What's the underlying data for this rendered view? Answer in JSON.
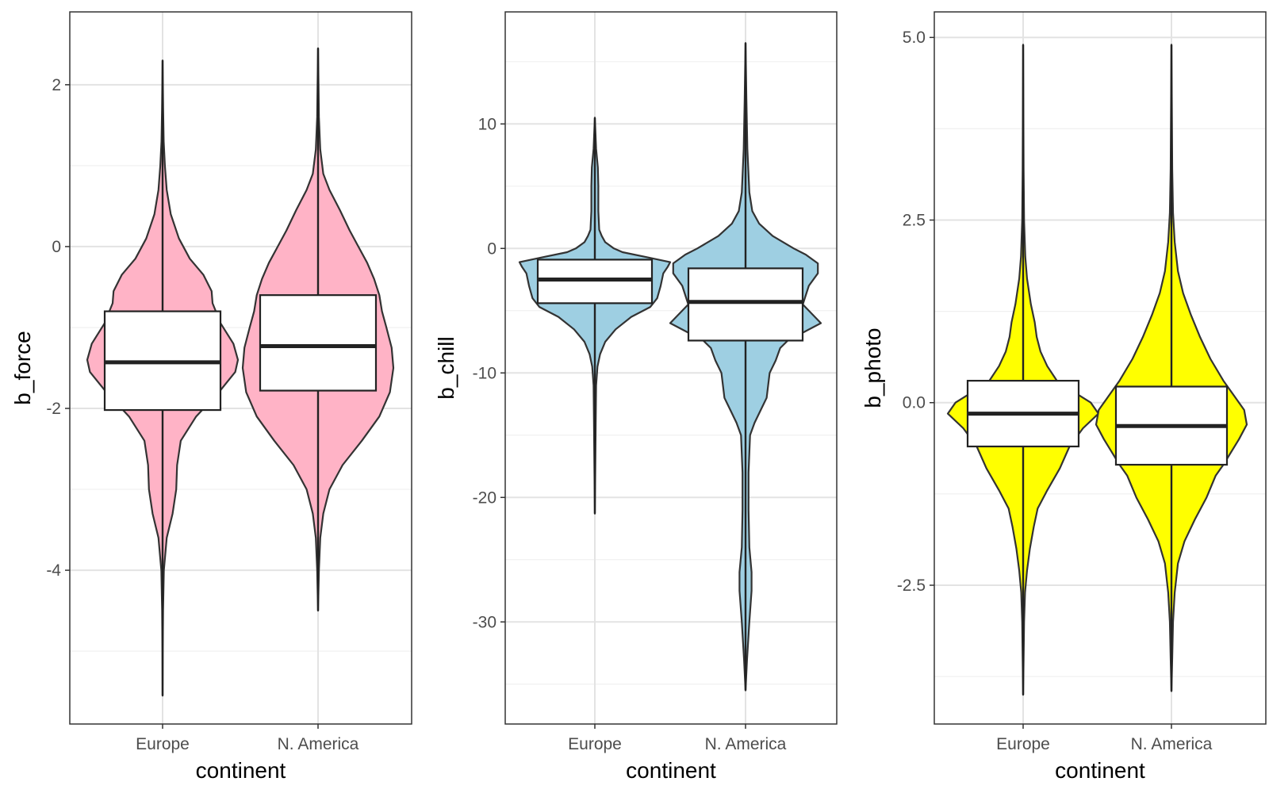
{
  "chart_data": [
    {
      "type": "violin",
      "xlabel": "continent",
      "ylabel": "b_force",
      "categories": [
        "Europe",
        "N. America"
      ],
      "ylim": [
        -5.9,
        2.9
      ],
      "yticks": [
        2,
        0,
        -2,
        -4
      ],
      "ytick_labels": [
        "2",
        "0",
        "-2",
        "-4"
      ],
      "fill": "#ffb3c6",
      "grid": true,
      "violins": [
        {
          "category": "Europe",
          "min": -5.55,
          "max": 2.3,
          "box": {
            "q1": -2.02,
            "median": -1.43,
            "q3": -0.8
          },
          "profile": [
            [
              -5.55,
              0.0
            ],
            [
              -5.0,
              0.2
            ],
            [
              -4.5,
              0.5
            ],
            [
              -4.0,
              1.4
            ],
            [
              -3.6,
              4.5
            ],
            [
              -3.3,
              11
            ],
            [
              -3.0,
              15
            ],
            [
              -2.7,
              16
            ],
            [
              -2.4,
              20
            ],
            [
              -2.1,
              37
            ],
            [
              -1.8,
              62
            ],
            [
              -1.55,
              80
            ],
            [
              -1.4,
              83
            ],
            [
              -1.2,
              78
            ],
            [
              -0.95,
              64
            ],
            [
              -0.7,
              55
            ],
            [
              -0.55,
              54
            ],
            [
              -0.35,
              45
            ],
            [
              -0.15,
              30
            ],
            [
              0.1,
              18
            ],
            [
              0.4,
              9
            ],
            [
              0.7,
              4.5
            ],
            [
              1.0,
              2.5
            ],
            [
              1.3,
              1.2
            ],
            [
              1.7,
              0.6
            ],
            [
              2.3,
              0.0
            ]
          ]
        },
        {
          "category": "N. America",
          "min": -4.5,
          "max": 2.45,
          "box": {
            "q1": -1.78,
            "median": -1.23,
            "q3": -0.6
          },
          "profile": [
            [
              -4.5,
              0.0
            ],
            [
              -4.0,
              1.0
            ],
            [
              -3.6,
              2.5
            ],
            [
              -3.3,
              6
            ],
            [
              -3.0,
              13
            ],
            [
              -2.7,
              28
            ],
            [
              -2.4,
              50
            ],
            [
              -2.1,
              70
            ],
            [
              -1.8,
              82
            ],
            [
              -1.5,
              86
            ],
            [
              -1.25,
              84
            ],
            [
              -1.0,
              78
            ],
            [
              -0.8,
              73
            ],
            [
              -0.6,
              70
            ],
            [
              -0.4,
              64
            ],
            [
              -0.2,
              56
            ],
            [
              0.0,
              46
            ],
            [
              0.2,
              36
            ],
            [
              0.45,
              25
            ],
            [
              0.7,
              13
            ],
            [
              0.9,
              6
            ],
            [
              1.2,
              2.5
            ],
            [
              1.6,
              1.0
            ],
            [
              2.0,
              0.5
            ],
            [
              2.45,
              0.0
            ]
          ]
        }
      ]
    },
    {
      "type": "violin",
      "xlabel": "continent",
      "ylabel": "b_chill",
      "categories": [
        "Europe",
        "N. America"
      ],
      "ylim": [
        -38.2,
        19
      ],
      "yticks": [
        10,
        0,
        -10,
        -20,
        -30
      ],
      "ytick_labels": [
        "10",
        "0",
        "-10",
        "-20",
        "-30"
      ],
      "fill": "#9ecfe2",
      "grid": true,
      "violins": [
        {
          "category": "Europe",
          "min": -21.3,
          "max": 10.5,
          "box": {
            "q1": -4.4,
            "median": -2.5,
            "q3": -0.9
          },
          "profile": [
            [
              -21.3,
              0.0
            ],
            [
              -18,
              0.5
            ],
            [
              -14,
              1.0
            ],
            [
              -11,
              1.5
            ],
            [
              -9.5,
              3
            ],
            [
              -8.5,
              6
            ],
            [
              -7.5,
              12
            ],
            [
              -6.5,
              24
            ],
            [
              -5.5,
              42
            ],
            [
              -4.7,
              64
            ],
            [
              -4.0,
              72
            ],
            [
              -3.0,
              76
            ],
            [
              -2.0,
              79
            ],
            [
              -1.5,
              84
            ],
            [
              -1.1,
              87
            ],
            [
              -0.7,
              60
            ],
            [
              -0.3,
              32
            ],
            [
              0.0,
              22
            ],
            [
              0.5,
              12
            ],
            [
              1.0,
              8
            ],
            [
              1.5,
              5
            ],
            [
              3.0,
              4
            ],
            [
              5.0,
              4
            ],
            [
              6.5,
              3.5
            ],
            [
              8.0,
              1.5
            ],
            [
              10.5,
              0.0
            ]
          ]
        },
        {
          "category": "N. America",
          "min": -35.5,
          "max": 16.5,
          "box": {
            "q1": -7.4,
            "median": -4.3,
            "q3": -1.6
          },
          "profile": [
            [
              -35.5,
              0.0
            ],
            [
              -33,
              1.0
            ],
            [
              -30,
              2.5
            ],
            [
              -27.5,
              4
            ],
            [
              -26,
              4
            ],
            [
              -24,
              2.5
            ],
            [
              -21,
              2.0
            ],
            [
              -18,
              2.0
            ],
            [
              -15,
              3
            ],
            [
              -14,
              6
            ],
            [
              -13,
              10
            ],
            [
              -12,
              14
            ],
            [
              -11,
              15
            ],
            [
              -10,
              16
            ],
            [
              -9,
              20
            ],
            [
              -8,
              23
            ],
            [
              -7.4,
              28
            ],
            [
              -6,
              50
            ],
            [
              -4.5,
              38
            ],
            [
              -3,
              42
            ],
            [
              -2,
              48
            ],
            [
              -1.2,
              48
            ],
            [
              -0.5,
              40
            ],
            [
              0.0,
              32
            ],
            [
              1.0,
              18
            ],
            [
              2.0,
              9
            ],
            [
              3.0,
              4.5
            ],
            [
              4.5,
              2.5
            ],
            [
              8.0,
              1.2
            ],
            [
              12,
              0.6
            ],
            [
              16.5,
              0.0
            ]
          ]
        }
      ]
    },
    {
      "type": "violin",
      "xlabel": "continent",
      "ylabel": "b_photo",
      "categories": [
        "Europe",
        "N. America"
      ],
      "ylim": [
        -4.4,
        5.35
      ],
      "yticks": [
        5.0,
        2.5,
        0.0,
        -2.5
      ],
      "ytick_labels": [
        "5.0",
        "2.5",
        "0.0",
        "-2.5"
      ],
      "fill": "#ffff00",
      "grid": true,
      "violins": [
        {
          "category": "Europe",
          "min": -4.0,
          "max": 4.9,
          "box": {
            "q1": -0.6,
            "median": -0.15,
            "q3": 0.3
          },
          "profile": [
            [
              -4.0,
              0.0
            ],
            [
              -3.5,
              0.5
            ],
            [
              -3.0,
              1.0
            ],
            [
              -2.6,
              2.0
            ],
            [
              -2.3,
              4
            ],
            [
              -2.0,
              7
            ],
            [
              -1.7,
              11
            ],
            [
              -1.45,
              15
            ],
            [
              -1.2,
              25
            ],
            [
              -0.9,
              38
            ],
            [
              -0.6,
              48
            ],
            [
              -0.35,
              62
            ],
            [
              -0.15,
              78
            ],
            [
              0.0,
              70
            ],
            [
              0.15,
              52
            ],
            [
              0.3,
              35
            ],
            [
              0.5,
              25
            ],
            [
              0.7,
              18
            ],
            [
              0.9,
              14
            ],
            [
              1.1,
              12
            ],
            [
              1.35,
              8
            ],
            [
              1.7,
              4
            ],
            [
              2.0,
              2.2
            ],
            [
              2.5,
              1.0
            ],
            [
              3.2,
              0.5
            ],
            [
              4.9,
              0.0
            ]
          ]
        },
        {
          "category": "N. America",
          "min": -3.95,
          "max": 4.9,
          "box": {
            "q1": -0.85,
            "median": -0.32,
            "q3": 0.22
          },
          "profile": [
            [
              -3.95,
              0.0
            ],
            [
              -3.5,
              0.6
            ],
            [
              -3.0,
              1.2
            ],
            [
              -2.6,
              2.5
            ],
            [
              -2.2,
              5
            ],
            [
              -1.9,
              10
            ],
            [
              -1.6,
              18
            ],
            [
              -1.3,
              27
            ],
            [
              -1.0,
              34
            ],
            [
              -0.85,
              40
            ],
            [
              -0.5,
              52
            ],
            [
              -0.3,
              58
            ],
            [
              -0.1,
              56
            ],
            [
              0.1,
              48
            ],
            [
              0.3,
              40
            ],
            [
              0.6,
              30
            ],
            [
              0.9,
              22
            ],
            [
              1.2,
              15
            ],
            [
              1.5,
              9
            ],
            [
              1.8,
              5
            ],
            [
              2.2,
              2.5
            ],
            [
              2.6,
              1.2
            ],
            [
              3.2,
              0.6
            ],
            [
              4.9,
              0.0
            ]
          ]
        }
      ]
    }
  ]
}
